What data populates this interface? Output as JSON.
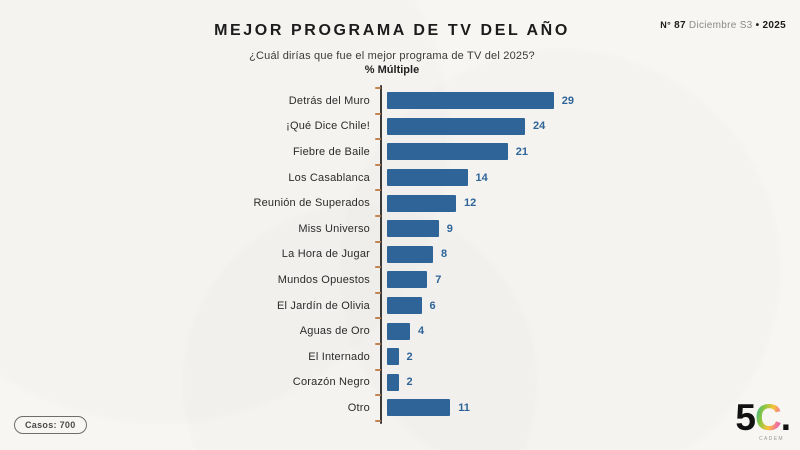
{
  "header": {
    "title": "MEJOR PROGRAMA DE TV DEL AÑO",
    "subtitle": "¿Cuál dirías que fue el mejor programa de TV del 2025?",
    "measure": "% Múltiple",
    "edition_prefix": "N°",
    "edition_number": "87",
    "edition_period": "Diciembre S3",
    "edition_separator": "•",
    "edition_year": "2025"
  },
  "chart_data": {
    "type": "bar",
    "orientation": "horizontal",
    "title": "MEJOR PROGRAMA DE TV DEL AÑO",
    "subtitle": "¿Cuál dirías que fue el mejor programa de TV del 2025?",
    "unit_label": "% Múltiple",
    "categories": [
      "Detrás del Muro",
      "¡Qué Dice Chile!",
      "Fiebre de Baile",
      "Los Casablanca",
      "Reunión de Superados",
      "Miss Universo",
      "La Hora de Jugar",
      "Mundos Opuestos",
      "El Jardín de Olivia",
      "Aguas de Oro",
      "El Internado",
      "Corazón Negro",
      "Otro"
    ],
    "values": [
      29,
      24,
      21,
      14,
      12,
      9,
      8,
      7,
      6,
      4,
      2,
      2,
      11
    ],
    "xlim": [
      0,
      30
    ],
    "grid": false,
    "legend": false,
    "bar_color": "#2e6498",
    "value_label_color": "#2e6498",
    "axis_color": "#3a3a3a",
    "tick_color": "#c08552"
  },
  "footer": {
    "cases": "Casos: 700"
  },
  "logo": {
    "five": "5",
    "c": "C",
    "dot": ".",
    "sub": "CADEM"
  }
}
